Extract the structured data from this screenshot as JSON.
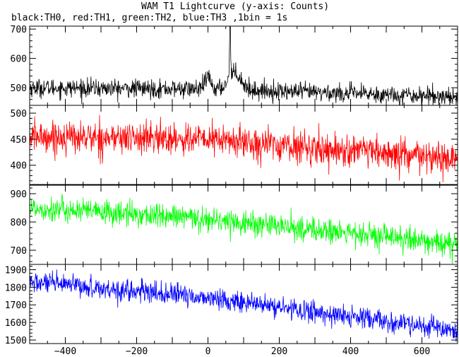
{
  "chart_data": {
    "type": "line",
    "title": "WAM T1 Lightcurve (y-axis: Counts)",
    "subtitle": "black:TH0, red:TH1, green:TH2, blue:TH3 ,1bin = 1s",
    "xlabel": "",
    "ylabel": "",
    "xlim": [
      -500,
      700
    ],
    "xticks": [
      -400,
      -200,
      0,
      200,
      400,
      600
    ],
    "bin_seconds": 1,
    "grid": false,
    "legend": "none",
    "panels": [
      {
        "name": "TH0",
        "color": "#000000",
        "ylim": [
          440,
          710
        ],
        "yticks": [
          500,
          600,
          700
        ],
        "baseline": [
          [
            -500,
            500
          ],
          [
            0,
            495
          ],
          [
            700,
            470
          ]
        ],
        "noise": 28,
        "features": [
          {
            "x": 0,
            "width": 8,
            "height": 40
          },
          {
            "x": 62,
            "width": 1.5,
            "height": 210
          },
          {
            "x": 75,
            "width": 18,
            "height": 60
          }
        ]
      },
      {
        "name": "TH1",
        "color": "#ff0000",
        "ylim": [
          363,
          515
        ],
        "yticks": [
          400,
          450,
          500
        ],
        "baseline": [
          [
            -500,
            455
          ],
          [
            0,
            450
          ],
          [
            700,
            410
          ]
        ],
        "noise": 28,
        "features": []
      },
      {
        "name": "TH2",
        "color": "#00ff00",
        "ylim": [
          650,
          930
        ],
        "yticks": [
          700,
          800,
          900
        ],
        "baseline": [
          [
            -500,
            850
          ],
          [
            0,
            810
          ],
          [
            700,
            720
          ]
        ],
        "noise": 40,
        "features": []
      },
      {
        "name": "TH3",
        "color": "#0000ff",
        "ylim": [
          1480,
          1930
        ],
        "yticks": [
          1500,
          1600,
          1700,
          1800,
          1900
        ],
        "baseline": [
          [
            -500,
            1830
          ],
          [
            0,
            1740
          ],
          [
            700,
            1550
          ]
        ],
        "noise": 55,
        "features": []
      }
    ]
  }
}
